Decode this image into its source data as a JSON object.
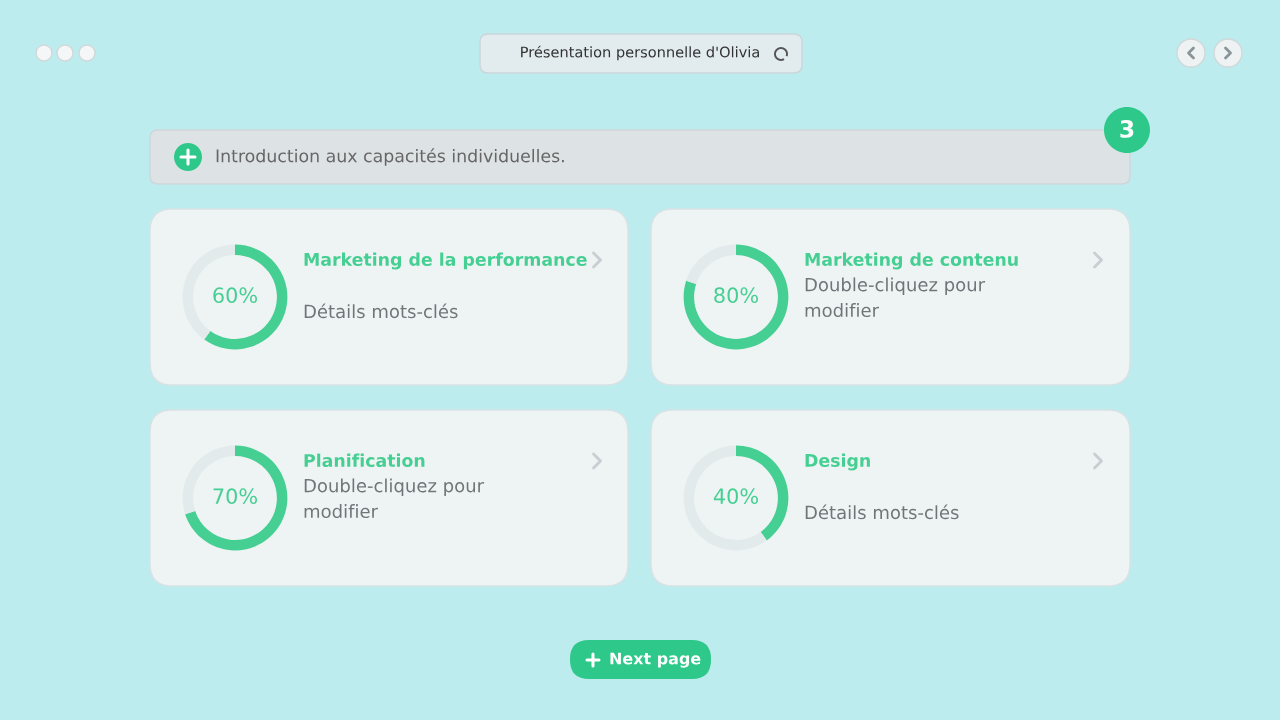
{
  "chart_data": [
    {
      "type": "other",
      "title": "Présentation personnelle d'Olivia",
      "subtitle": "Introduction aux capacités individuelles.",
      "annotations": [
        "3",
        "Next page"
      ]
    },
    {
      "type": "donut",
      "title": "Marketing de la performance",
      "subtitle": "Détails mots-clés",
      "categories": [
        null,
        null
      ],
      "values": [
        60,
        40
      ],
      "colors": [
        "#45cf92",
        "#e2eaeb"
      ],
      "value_labels": [
        "60%",
        null
      ]
    },
    {
      "type": "donut",
      "title": "Marketing de contenu",
      "subtitle": "Double-cliquez pour\nmodifier",
      "categories": [
        null,
        null
      ],
      "values": [
        80,
        20
      ],
      "colors": [
        "#45cf92",
        "#e2eaeb"
      ],
      "value_labels": [
        "80%",
        null
      ]
    },
    {
      "type": "donut",
      "title": "Planification",
      "subtitle": "Double-cliquez pour\nmodifier",
      "categories": [
        null,
        null
      ],
      "values": [
        70,
        30
      ],
      "colors": [
        "#45cf92",
        "#e2eaeb"
      ],
      "value_labels": [
        "70%",
        null
      ]
    },
    {
      "type": "donut",
      "title": "Design",
      "subtitle": "Détails mots-clés",
      "categories": [
        null,
        null
      ],
      "values": [
        40,
        60
      ],
      "colors": [
        "#45cf92",
        "#e2eaeb"
      ],
      "value_labels": [
        "40%",
        null
      ]
    }
  ]
}
